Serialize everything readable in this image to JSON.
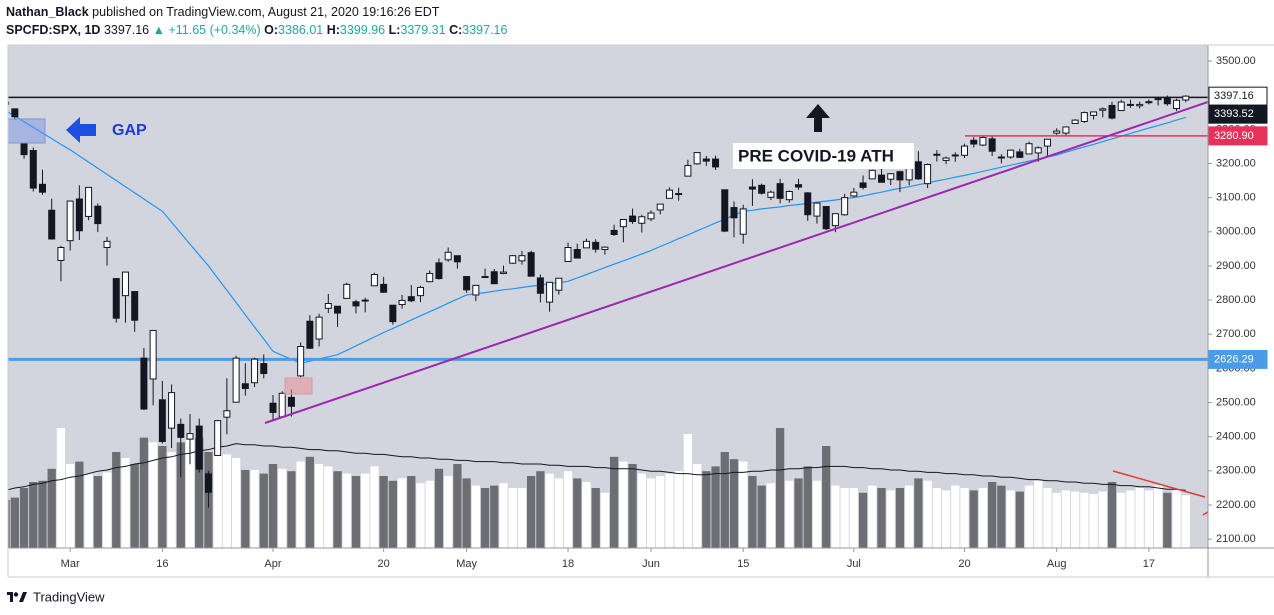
{
  "header": {
    "author": "Nathan_Black",
    "published": "published on TradingView.com, August 21, 2020 19:16:26 EDT",
    "symbol": "SPCFD:SPX, 1D",
    "last": "3397.16",
    "change": "▲ +11.65 (+0.34%)",
    "ohlc": [
      {
        "key": "O:",
        "value": "3386.01"
      },
      {
        "key": "H:",
        "value": "3399.96"
      },
      {
        "key": "L:",
        "value": "3379.31"
      },
      {
        "key": "C:",
        "value": "3397.16"
      }
    ]
  },
  "footer": {
    "brand": "TradingView"
  },
  "chart_data": {
    "type": "candlestick",
    "annotations": {
      "gap": "GAP",
      "ath": "PRE COVID-19 ATH"
    },
    "categories": [
      null,
      null,
      null,
      null,
      null,
      null,
      null,
      "Mar",
      null,
      null,
      null,
      null,
      null,
      null,
      null,
      null,
      null,
      "16",
      null,
      null,
      null,
      null,
      null,
      null,
      null,
      null,
      null,
      null,
      null,
      "Apr",
      null,
      null,
      null,
      null,
      null,
      null,
      null,
      null,
      null,
      null,
      null,
      "20",
      null,
      null,
      null,
      null,
      null,
      null,
      null,
      null,
      "May",
      null,
      null,
      null,
      null,
      null,
      null,
      null,
      null,
      null,
      null,
      "18",
      null,
      null,
      null,
      null,
      null,
      null,
      null,
      null,
      "Jun",
      null,
      null,
      null,
      null,
      null,
      null,
      null,
      null,
      null,
      "15",
      null,
      null,
      null,
      null,
      null,
      null,
      null,
      null,
      null,
      null,
      null,
      "Jul",
      null,
      null,
      null,
      null,
      null,
      null,
      null,
      null,
      null,
      null,
      null,
      "20",
      null,
      null,
      null,
      null,
      null,
      null,
      null,
      null,
      null,
      "Aug",
      null,
      null,
      null,
      null,
      null,
      null,
      null,
      null,
      null,
      "17",
      null,
      null,
      null,
      null
    ],
    "open": [
      3380,
      3360,
      3257,
      3238,
      3139,
      3063,
      2916,
      2974,
      3096,
      3045,
      3075,
      2954,
      2863,
      2813,
      2825,
      2630,
      2569,
      2508,
      2425,
      2436,
      2393,
      2431,
      2291,
      2345,
      2457,
      2501,
      2555,
      2558,
      2614,
      2498,
      2458,
      2515,
      2578,
      2738,
      2686,
      2776,
      2782,
      2805,
      2795,
      2799,
      2842,
      2846,
      2785,
      2787,
      2810,
      2813,
      2854,
      2909,
      2918,
      2930,
      2869,
      2815,
      2869,
      2883,
      2878,
      2908,
      2915,
      2939,
      2865,
      2794,
      2829,
      2913,
      2948,
      2953,
      2969,
      2948,
      3004,
      3015,
      3046,
      3025,
      3038,
      3064,
      3098,
      3111,
      3163,
      3199,
      3213,
      3213,
      3123,
      3071,
      2993,
      3131,
      3136,
      3101,
      3141,
      3094,
      3138,
      3114,
      3046,
      3074,
      3018,
      3050,
      3105,
      3143,
      3155,
      3166,
      3154,
      3176,
      3152,
      3205,
      3141,
      3226,
      3209,
      3224,
      3224,
      3268,
      3254,
      3272,
      3219,
      3219,
      3234,
      3228,
      3231,
      3251,
      3289,
      3289,
      3317,
      3323,
      3341,
      3356,
      3370,
      3355,
      3373,
      3369,
      3380,
      3388,
      3392,
      3361,
      3386.01
    ],
    "high": [
      3393,
      3360,
      3259,
      3247,
      3182,
      3097,
      2959,
      3090,
      3136,
      3130,
      3083,
      2985,
      2863,
      2882,
      2825,
      2660,
      2711,
      2563,
      2553,
      2453,
      2466,
      2453,
      2300,
      2449,
      2571,
      2637,
      2615,
      2631,
      2641,
      2522,
      2533,
      2538,
      2676,
      2756,
      2760,
      2818,
      2782,
      2851,
      2801,
      2807,
      2880,
      2868,
      2785,
      2815,
      2844,
      2842,
      2887,
      2922,
      2954,
      2930,
      2869,
      2845,
      2892,
      2891,
      2901,
      2932,
      2944,
      2945,
      2875,
      2852,
      2865,
      2968,
      2965,
      2980,
      2978,
      2957,
      3021,
      3036,
      3068,
      3050,
      3063,
      3081,
      3130,
      3129,
      3211,
      3233,
      3222,
      3223,
      3123,
      3089,
      3079,
      3154,
      3141,
      3121,
      3155,
      3121,
      3155,
      3116,
      3086,
      3074,
      3053,
      3111,
      3128,
      3165,
      3182,
      3185,
      3172,
      3179,
      3186,
      3236,
      3200,
      3239,
      3220,
      3233,
      3258,
      3277,
      3279,
      3279,
      3227,
      3241,
      3243,
      3264,
      3250,
      3272,
      3303,
      3307,
      3330,
      3352,
      3352,
      3364,
      3381,
      3387,
      3387,
      3381,
      3388,
      3396,
      3399,
      3390,
      3399.96
    ],
    "low": [
      3340,
      3328,
      3214,
      3118,
      3108,
      2977,
      2855,
      2945,
      2976,
      3034,
      2999,
      2901,
      2734,
      2734,
      2707,
      2478,
      2492,
      2380,
      2367,
      2281,
      2319,
      2295,
      2192,
      2345,
      2407,
      2500,
      2520,
      2545,
      2571,
      2447,
      2455,
      2459,
      2574,
      2657,
      2664,
      2762,
      2721,
      2805,
      2761,
      2764,
      2842,
      2821,
      2728,
      2775,
      2794,
      2794,
      2852,
      2860,
      2912,
      2892,
      2821,
      2797,
      2869,
      2847,
      2876,
      2906,
      2904,
      2869,
      2793,
      2766,
      2816,
      2913,
      2922,
      2953,
      2939,
      2933,
      2988,
      2969,
      3023,
      2998,
      3031,
      3051,
      3098,
      3091,
      3163,
      3196,
      3193,
      3181,
      2999,
      2984,
      2965,
      3076,
      3109,
      3093,
      3083,
      3085,
      3123,
      3032,
      3024,
      3005,
      2999,
      3047,
      3101,
      3124,
      3155,
      3145,
      3137,
      3116,
      3136,
      3152,
      3128,
      3206,
      3198,
      3205,
      3216,
      3247,
      3251,
      3222,
      3200,
      3214,
      3216,
      3228,
      3205,
      3220,
      3284,
      3283,
      3317,
      3319,
      3329,
      3335,
      3329,
      3355,
      3363,
      3361,
      3373,
      3370,
      3369,
      3354,
      3379.31
    ],
    "close": [
      3373,
      3337,
      3226,
      3128,
      3116,
      2979,
      2954,
      3090,
      3003,
      3130,
      3024,
      2972,
      2747,
      2882,
      2741,
      2481,
      2711,
      2386,
      2529,
      2398,
      2409,
      2305,
      2237,
      2447,
      2476,
      2630,
      2541,
      2627,
      2585,
      2471,
      2527,
      2489,
      2664,
      2659,
      2750,
      2790,
      2762,
      2846,
      2783,
      2800,
      2875,
      2823,
      2737,
      2799,
      2798,
      2837,
      2878,
      2863,
      2940,
      2912,
      2830,
      2843,
      2868,
      2848,
      2882,
      2930,
      2930,
      2870,
      2820,
      2852,
      2864,
      2954,
      2923,
      2972,
      2949,
      2955,
      2992,
      3036,
      3030,
      3044,
      3055,
      3081,
      3122,
      3112,
      3194,
      3232,
      3207,
      3190,
      3002,
      3041,
      3067,
      3125,
      3113,
      3116,
      3098,
      3118,
      3131,
      3050,
      3084,
      3009,
      3053,
      3100,
      3116,
      3130,
      3180,
      3145,
      3170,
      3152,
      3185,
      3155,
      3197,
      3227,
      3216,
      3225,
      3251,
      3257,
      3276,
      3236,
      3216,
      3239,
      3218,
      3258,
      3246,
      3271,
      3295,
      3307,
      3327,
      3349,
      3351,
      3360,
      3333,
      3380,
      3373,
      3373,
      3381,
      3390,
      3375,
      3385,
      3397.16
    ],
    "up_color": "#ffffff",
    "down_color": "#131722",
    "ma": [
      3355,
      3339,
      3322,
      3306,
      3289,
      3273,
      3256,
      3240,
      3222,
      3204,
      3186,
      3168,
      3150,
      3132,
      3114,
      3096,
      3078,
      3060,
      3028,
      2996,
      2964,
      2932,
      2900,
      2864,
      2829,
      2793,
      2757,
      2721,
      2686,
      2650,
      2638,
      2627,
      2615,
      2621,
      2628,
      2634,
      2640,
      2653,
      2666,
      2679,
      2692,
      2705,
      2717,
      2729,
      2742,
      2754,
      2766,
      2778,
      2791,
      2803,
      2815,
      2819,
      2822,
      2826,
      2830,
      2833,
      2837,
      2841,
      2844,
      2848,
      2851,
      2855,
      2865,
      2875,
      2885,
      2895,
      2905,
      2915,
      2925,
      2935,
      2945,
      2957,
      2968,
      2980,
      2991,
      3003,
      3014,
      3026,
      3037,
      3049,
      3060,
      3063,
      3067,
      3070,
      3073,
      3077,
      3080,
      3083,
      3087,
      3090,
      3093,
      3097,
      3100,
      3105,
      3111,
      3116,
      3122,
      3127,
      3132,
      3138,
      3143,
      3149,
      3154,
      3160,
      3165,
      3171,
      3177,
      3183,
      3189,
      3195,
      3201,
      3207,
      3213,
      3219,
      3225,
      3233,
      3241,
      3249,
      3256,
      3264,
      3272,
      3280,
      3288,
      3296,
      3304,
      3311,
      3319,
      3327,
      3335
    ],
    "ma_color": "#2196f3",
    "volume": [
      40,
      42,
      50,
      55,
      56,
      66,
      100,
      70,
      72,
      62,
      60,
      63,
      80,
      75,
      70,
      92,
      88,
      85,
      80,
      88,
      90,
      92,
      80,
      82,
      78,
      75,
      65,
      65,
      62,
      70,
      66,
      64,
      72,
      76,
      70,
      68,
      64,
      62,
      60,
      62,
      68,
      60,
      56,
      58,
      60,
      54,
      56,
      66,
      60,
      70,
      58,
      52,
      50,
      52,
      54,
      50,
      50,
      60,
      64,
      62,
      58,
      64,
      58,
      55,
      50,
      46,
      76,
      72,
      70,
      62,
      58,
      60,
      62,
      64,
      95,
      70,
      64,
      68,
      80,
      74,
      72,
      60,
      52,
      54,
      100,
      56,
      58,
      68,
      56,
      85,
      52,
      50,
      50,
      46,
      52,
      50,
      48,
      50,
      52,
      58,
      56,
      50,
      48,
      52,
      50,
      48,
      50,
      55,
      52,
      48,
      47,
      52,
      56,
      50,
      46,
      48,
      47,
      46,
      45,
      47,
      55,
      46,
      48,
      50,
      48,
      52,
      46,
      48,
      44
    ],
    "volume_ylim": [
      0,
      100
    ],
    "volume_up_color": "#ffffff",
    "volume_down_color": "#6d6e73",
    "volume_ma": [
      48,
      50,
      51,
      53,
      54,
      56,
      57,
      59,
      60,
      62,
      64,
      65,
      67,
      68,
      70,
      71,
      73,
      75,
      76,
      78,
      79,
      81,
      82,
      84,
      85,
      87,
      86,
      86,
      85,
      85,
      84,
      84,
      83,
      82,
      82,
      81,
      81,
      80,
      79,
      79,
      78,
      78,
      77,
      76,
      76,
      75,
      75,
      74,
      74,
      73,
      73,
      72,
      72,
      72,
      71,
      71,
      70,
      70,
      70,
      69,
      69,
      68,
      68,
      68,
      67,
      67,
      66,
      66,
      66,
      65,
      64,
      64,
      63,
      62,
      62,
      61,
      61,
      62,
      62,
      63,
      63,
      64,
      64,
      65,
      65,
      66,
      66,
      67,
      67,
      68,
      68,
      68,
      67,
      67,
      66,
      66,
      65,
      65,
      64,
      64,
      63,
      63,
      62,
      62,
      61,
      61,
      60,
      60,
      59,
      59,
      58,
      57,
      57,
      56,
      56,
      55,
      55,
      54,
      54,
      53,
      53,
      52,
      52,
      51,
      51,
      50,
      49,
      49,
      48
    ],
    "volume_ma_color": "#131722",
    "ylim": [
      2074,
      3547
    ],
    "yticks": [
      {
        "value": 2100,
        "label": "2100.00"
      },
      {
        "value": 2200,
        "label": "2200.00"
      },
      {
        "value": 2300,
        "label": "2300.00"
      },
      {
        "value": 2400,
        "label": "2400.00"
      },
      {
        "value": 2500,
        "label": "2500.00"
      },
      {
        "value": 2600,
        "label": "2600.00"
      },
      {
        "value": 2700,
        "label": "2700.00"
      },
      {
        "value": 2800,
        "label": "2800.00"
      },
      {
        "value": 2900,
        "label": "2900.00"
      },
      {
        "value": 3000,
        "label": "3000.00"
      },
      {
        "value": 3100,
        "label": "3100.00"
      },
      {
        "value": 3200,
        "label": "3200.00"
      },
      {
        "value": 3300,
        "label": "3300.00"
      },
      {
        "value": 3400,
        "label": "3400.00"
      },
      {
        "value": 3500,
        "label": "3500.00"
      }
    ],
    "last_price": {
      "value": 3397.16,
      "label": "3397.16"
    },
    "levels": [
      {
        "value": 3393.52,
        "label": "3393.52",
        "color": "#131722"
      },
      {
        "value": 3280.9,
        "label": "3280.90",
        "color": "#e6315b"
      },
      {
        "value": 2626.29,
        "label": "2626.29",
        "color": "#4a9be8"
      }
    ]
  }
}
